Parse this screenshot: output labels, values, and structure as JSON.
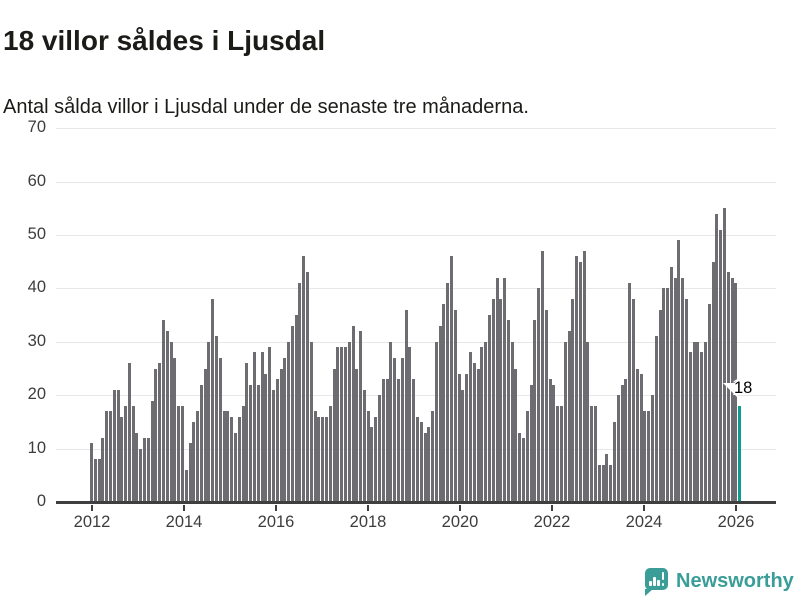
{
  "title": "18 villor såldes i Ljusdal",
  "subtitle": "Antal sålda villor i Ljusdal under de senaste tre månaderna.",
  "annotation": {
    "last_value_label": "18"
  },
  "footer": {
    "brand": "Newsworthy"
  },
  "colors": {
    "bar": "#6c6c71",
    "highlight_bar": "#0f9b90",
    "brand_teal": "#3a9d98",
    "gridline": "#e7e7e7",
    "axis": "#3f3f3f",
    "text": "#1b1b18"
  },
  "chart_data": {
    "type": "bar",
    "title": "18 villor såldes i Ljusdal",
    "subtitle": "Antal sålda villor i Ljusdal under de senaste tre månaderna.",
    "xlabel": "",
    "ylabel": "",
    "x_unit": "månad (rullande tremånadersperioder), jan 2012 – 2026",
    "x_tick_labels": [
      "2012",
      "2014",
      "2016",
      "2018",
      "2020",
      "2022",
      "2024",
      "2026"
    ],
    "y_ticks": [
      0,
      10,
      20,
      30,
      40,
      50,
      60,
      70
    ],
    "ylim": [
      0,
      70
    ],
    "grid": "horizontal",
    "legend": "none",
    "highlight_last_bar": true,
    "last_bar_label": "18",
    "values": [
      11,
      8,
      8,
      12,
      17,
      17,
      21,
      21,
      16,
      18,
      26,
      18,
      13,
      10,
      12,
      12,
      19,
      25,
      26,
      34,
      32,
      30,
      27,
      18,
      18,
      6,
      11,
      15,
      17,
      22,
      25,
      30,
      38,
      31,
      27,
      17,
      17,
      16,
      13,
      16,
      18,
      26,
      22,
      28,
      22,
      28,
      24,
      29,
      21,
      23,
      25,
      27,
      30,
      33,
      35,
      41,
      46,
      43,
      30,
      17,
      16,
      16,
      16,
      18,
      25,
      29,
      29,
      29,
      30,
      33,
      25,
      32,
      21,
      17,
      14,
      16,
      20,
      23,
      23,
      30,
      27,
      23,
      27,
      36,
      29,
      23,
      16,
      15,
      13,
      14,
      17,
      30,
      33,
      37,
      41,
      46,
      36,
      24,
      21,
      24,
      28,
      26,
      25,
      29,
      30,
      35,
      38,
      42,
      38,
      42,
      34,
      30,
      25,
      13,
      12,
      17,
      22,
      34,
      40,
      47,
      36,
      23,
      22,
      18,
      18,
      30,
      32,
      38,
      46,
      45,
      47,
      30,
      18,
      18,
      7,
      7,
      9,
      7,
      15,
      20,
      22,
      23,
      41,
      38,
      25,
      24,
      17,
      17,
      20,
      31,
      36,
      40,
      40,
      44,
      42,
      49,
      42,
      38,
      28,
      30,
      30,
      28,
      30,
      37,
      45,
      54,
      51,
      55,
      43,
      42,
      41,
      18
    ]
  }
}
